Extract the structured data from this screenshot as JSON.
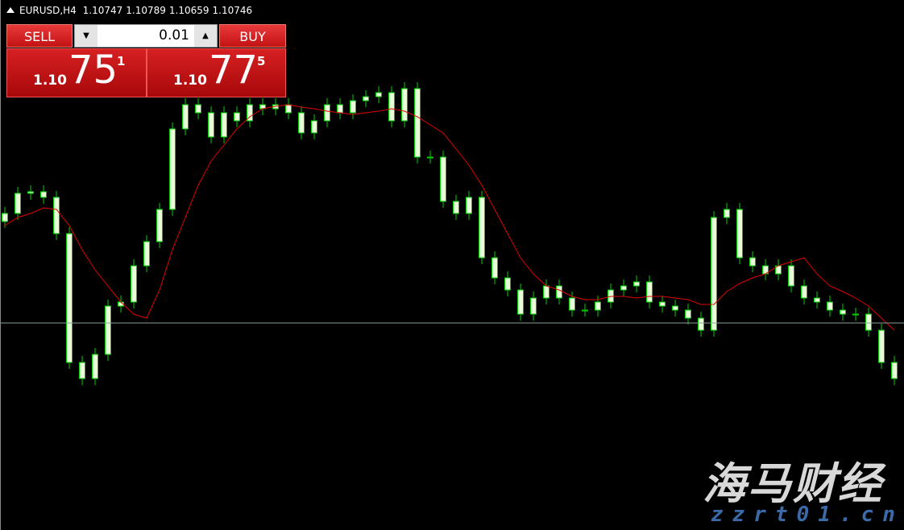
{
  "chart_data": {
    "type": "candlestick",
    "symbol": "EURUSD,H4",
    "quote": {
      "open": 1.10747,
      "high": 1.10789,
      "low": 1.10659,
      "close": 1.10746
    },
    "ylim": [
      1.10232,
      1.11548
    ],
    "wick_color": "#00d000",
    "body_color": "#e6ffd8",
    "bid_line_color": "#8c9c9c",
    "open": [
      1.10998,
      1.11018,
      1.11068,
      1.11072,
      1.11058,
      1.10968,
      1.10648,
      1.10608,
      1.10668,
      1.10788,
      1.10798,
      1.10888,
      1.10948,
      1.11028,
      1.11228,
      1.11288,
      1.11268,
      1.11208,
      1.11268,
      1.11248,
      1.11288,
      1.11278,
      1.11288,
      1.11268,
      1.11218,
      1.11248,
      1.11288,
      1.11268,
      1.11298,
      1.11308,
      1.11318,
      1.11248,
      1.11328,
      1.11158,
      1.11158,
      1.11048,
      1.11018,
      1.11058,
      1.10908,
      1.10858,
      1.10828,
      1.10768,
      1.10808,
      1.10838,
      1.10808,
      1.10778,
      1.10778,
      1.10798,
      1.10828,
      1.10838,
      1.10848,
      1.10798,
      1.10788,
      1.10778,
      1.10758,
      1.10728,
      1.11008,
      1.11028,
      1.10908,
      1.10888,
      1.10868,
      1.10888,
      1.10838,
      1.10808,
      1.10798,
      1.10778,
      1.10768,
      1.10768,
      1.10728,
      1.10648
    ],
    "high": [
      1.11034,
      1.11084,
      1.11088,
      1.11088,
      1.11074,
      1.10984,
      1.10664,
      1.10684,
      1.10804,
      1.10814,
      1.10904,
      1.10964,
      1.11044,
      1.11244,
      1.11304,
      1.11304,
      1.11284,
      1.11284,
      1.11284,
      1.11304,
      1.11304,
      1.11304,
      1.11304,
      1.11284,
      1.11264,
      1.11304,
      1.11304,
      1.11314,
      1.11324,
      1.11334,
      1.11334,
      1.11344,
      1.11344,
      1.11174,
      1.11174,
      1.11064,
      1.11074,
      1.11074,
      1.10924,
      1.10874,
      1.10844,
      1.10824,
      1.10854,
      1.10854,
      1.10824,
      1.10794,
      1.10814,
      1.10844,
      1.10854,
      1.10864,
      1.10864,
      1.10814,
      1.10804,
      1.10794,
      1.10774,
      1.11024,
      1.11044,
      1.11044,
      1.10924,
      1.10904,
      1.10904,
      1.10904,
      1.10854,
      1.10824,
      1.10814,
      1.10794,
      1.10784,
      1.10784,
      1.10744,
      1.10664
    ],
    "low": [
      1.10982,
      1.11002,
      1.11052,
      1.11042,
      1.10952,
      1.10632,
      1.10592,
      1.10592,
      1.10652,
      1.10772,
      1.10782,
      1.10872,
      1.10932,
      1.11012,
      1.11212,
      1.11252,
      1.11192,
      1.11192,
      1.11232,
      1.11232,
      1.11262,
      1.11262,
      1.11252,
      1.11202,
      1.11202,
      1.11232,
      1.11252,
      1.11252,
      1.11282,
      1.11292,
      1.11232,
      1.11232,
      1.11142,
      1.11142,
      1.11032,
      1.11002,
      1.11002,
      1.10892,
      1.10842,
      1.10812,
      1.10752,
      1.10752,
      1.10792,
      1.10792,
      1.10762,
      1.10762,
      1.10762,
      1.10782,
      1.10812,
      1.10822,
      1.10782,
      1.10772,
      1.10762,
      1.10742,
      1.10712,
      1.10712,
      1.10992,
      1.10892,
      1.10872,
      1.10852,
      1.10852,
      1.10822,
      1.10792,
      1.10782,
      1.10762,
      1.10752,
      1.10752,
      1.10712,
      1.10632,
      1.10592
    ],
    "close": [
      1.11018,
      1.11068,
      1.11072,
      1.11058,
      1.10968,
      1.10648,
      1.10608,
      1.10668,
      1.10788,
      1.10798,
      1.10888,
      1.10948,
      1.11028,
      1.11228,
      1.11288,
      1.11268,
      1.11208,
      1.11268,
      1.11248,
      1.11288,
      1.11278,
      1.11288,
      1.11268,
      1.11218,
      1.11248,
      1.11288,
      1.11268,
      1.11298,
      1.11308,
      1.11318,
      1.11248,
      1.11328,
      1.11158,
      1.11158,
      1.11048,
      1.11018,
      1.11058,
      1.10908,
      1.10858,
      1.10828,
      1.10768,
      1.10808,
      1.10838,
      1.10808,
      1.10778,
      1.10778,
      1.10798,
      1.10828,
      1.10838,
      1.10848,
      1.10798,
      1.10788,
      1.10778,
      1.10758,
      1.10728,
      1.11008,
      1.11028,
      1.10908,
      1.10888,
      1.10868,
      1.10888,
      1.10838,
      1.10808,
      1.10798,
      1.10778,
      1.10768,
      1.10768,
      1.10728,
      1.10648,
      1.10608
    ],
    "ma": {
      "color": "#e00000",
      "values": [
        1.10988,
        1.11008,
        1.11018,
        1.11032,
        1.11028,
        1.10988,
        1.10928,
        1.10878,
        1.10838,
        1.10798,
        1.10768,
        1.10758,
        1.10828,
        1.10928,
        1.11008,
        1.11088,
        1.11148,
        1.11188,
        1.11228,
        1.11258,
        1.11278,
        1.11284,
        1.11288,
        1.11282,
        1.11278,
        1.11272,
        1.11268,
        1.11264,
        1.11268,
        1.11272,
        1.11278,
        1.11272,
        1.11258,
        1.11238,
        1.11218,
        1.11178,
        1.11138,
        1.11088,
        1.11028,
        1.10968,
        1.10908,
        1.10868,
        1.10838,
        1.10828,
        1.10812,
        1.10804,
        1.10804,
        1.10812,
        1.10812,
        1.10808,
        1.10812,
        1.10812,
        1.10808,
        1.10804,
        1.10792,
        1.10792,
        1.10824,
        1.10844,
        1.10858,
        1.10868,
        1.10888,
        1.10898,
        1.10908,
        1.10868,
        1.10838,
        1.10824,
        1.10808,
        1.10788,
        1.10758,
        1.10728
      ]
    }
  },
  "trade_panel": {
    "sell": "SELL",
    "buy": "BUY",
    "lot": "0.01",
    "sell_price": {
      "prefix": "1.10",
      "big": "75",
      "sup": "1"
    },
    "buy_price": {
      "prefix": "1.10",
      "big": "77",
      "sup": "5"
    }
  },
  "watermark": {
    "title": "海马财经",
    "url": "zzrt01.cn"
  }
}
